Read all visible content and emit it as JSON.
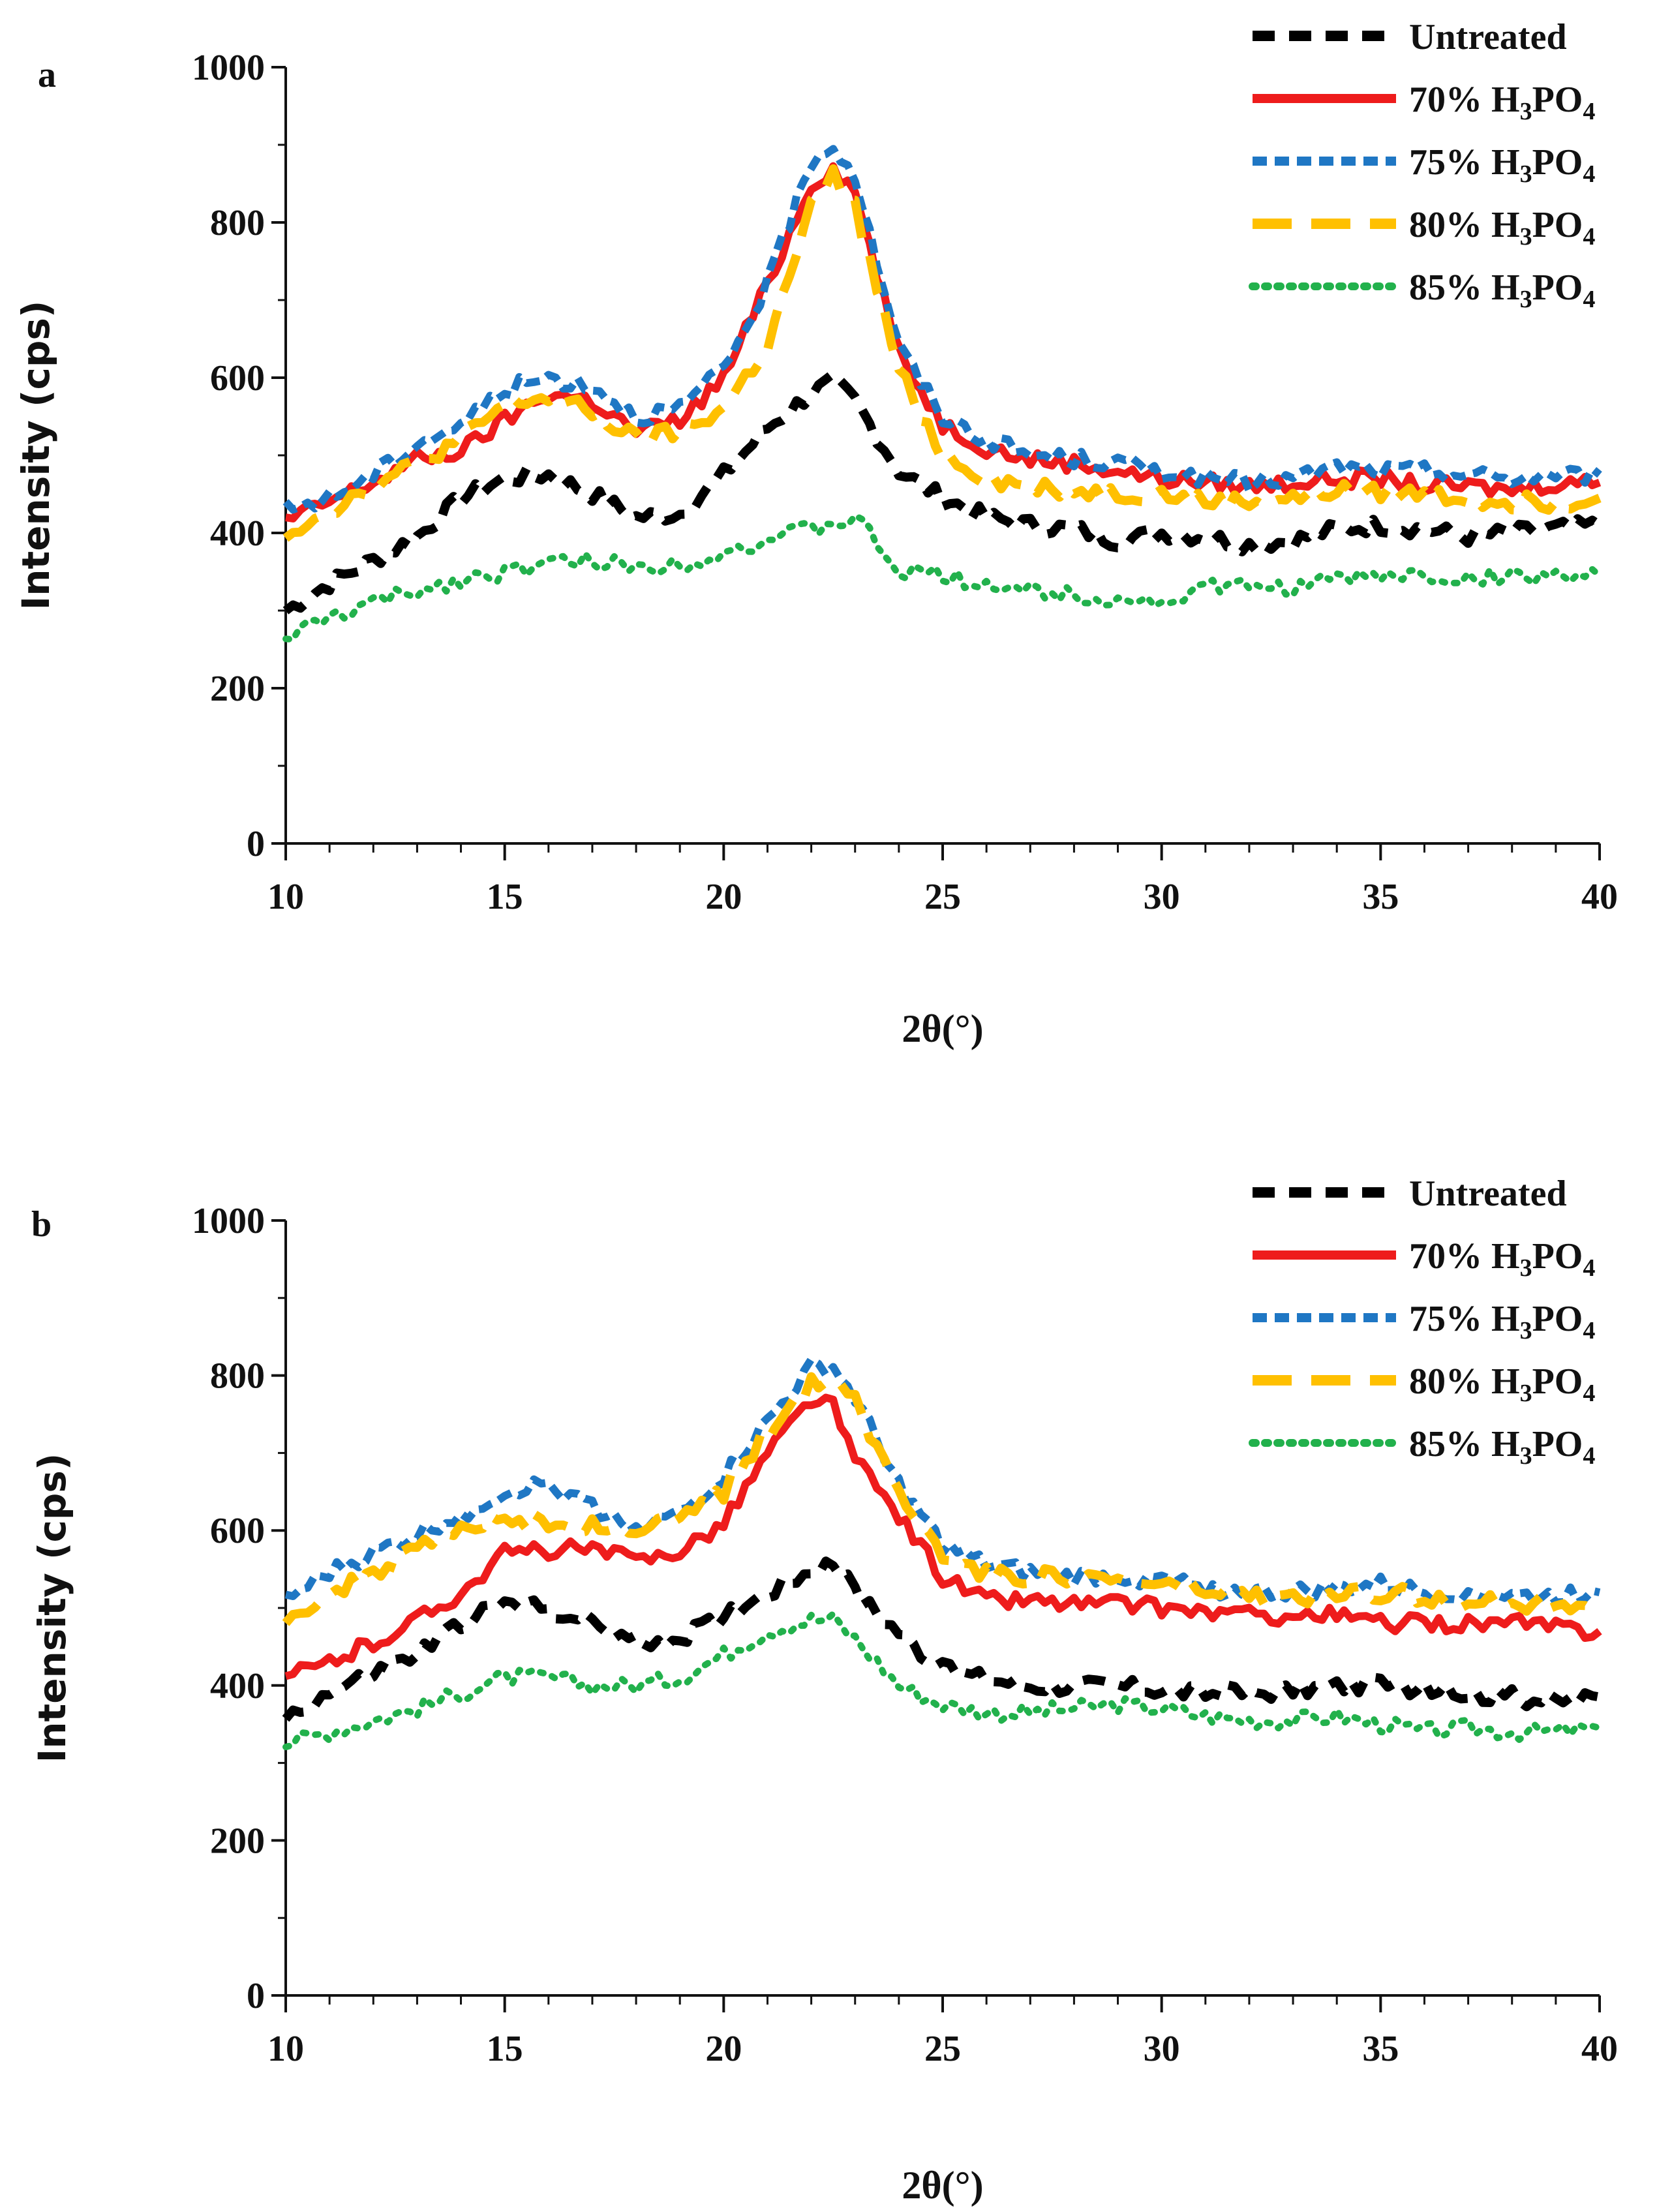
{
  "chart_data": [
    {
      "panel": "a",
      "type": "line",
      "xlabel": "2θ(°)",
      "ylabel": "Intensity (cps)",
      "xlim": [
        10,
        40
      ],
      "ylim": [
        0,
        1000
      ],
      "xticks": [
        "10",
        "15",
        "20",
        "25",
        "30",
        "35",
        "40"
      ],
      "yticks": [
        "0",
        "200",
        "400",
        "600",
        "800",
        "1000"
      ],
      "legend_position": "top-right",
      "x": [
        10,
        11,
        12,
        13,
        14,
        15,
        16,
        17,
        18,
        19,
        20,
        21,
        22,
        22.5,
        23,
        24,
        25,
        26,
        27,
        28,
        29,
        30,
        31,
        32,
        33,
        34,
        35,
        36,
        37,
        38,
        39,
        40
      ],
      "series": [
        {
          "name": "Untreated",
          "color": "#000000",
          "style": "dash",
          "values": [
            300,
            335,
            365,
            395,
            445,
            470,
            475,
            450,
            420,
            425,
            475,
            535,
            580,
            595,
            570,
            480,
            445,
            420,
            410,
            405,
            390,
            400,
            395,
            385,
            390,
            405,
            410,
            405,
            395,
            400,
            405,
            410
          ]
        },
        {
          "name": "70% H3PO4",
          "color": "#ee1c1c",
          "style": "solid",
          "values": [
            415,
            440,
            465,
            495,
            505,
            545,
            580,
            570,
            530,
            545,
            600,
            720,
            850,
            870,
            840,
            630,
            540,
            510,
            495,
            490,
            480,
            470,
            465,
            460,
            465,
            470,
            470,
            460,
            460,
            455,
            465,
            465
          ]
        },
        {
          "name": "75% H3PO4",
          "color": "#1f77c4",
          "style": "dash-short",
          "values": [
            430,
            445,
            475,
            515,
            540,
            585,
            600,
            590,
            550,
            560,
            610,
            720,
            880,
            900,
            860,
            640,
            550,
            520,
            500,
            495,
            490,
            480,
            470,
            465,
            470,
            485,
            480,
            480,
            475,
            470,
            475,
            475
          ]
        },
        {
          "name": "80% H3PO4",
          "color": "#ffc000",
          "style": "dash-long",
          "values": [
            400,
            430,
            460,
            490,
            520,
            565,
            575,
            555,
            520,
            530,
            560,
            640,
            820,
            860,
            820,
            610,
            500,
            470,
            460,
            455,
            450,
            450,
            440,
            440,
            445,
            455,
            450,
            450,
            445,
            440,
            440,
            445
          ]
        },
        {
          "name": "85% H3PO4",
          "color": "#22b14c",
          "style": "dot",
          "values": [
            265,
            290,
            310,
            325,
            340,
            350,
            360,
            365,
            355,
            360,
            375,
            390,
            405,
            410,
            420,
            350,
            345,
            335,
            325,
            320,
            315,
            310,
            330,
            330,
            330,
            340,
            345,
            345,
            340,
            345,
            345,
            345
          ]
        }
      ]
    },
    {
      "panel": "b",
      "type": "line",
      "xlabel": "2θ(°)",
      "ylabel": "Intensity (cps)",
      "xlim": [
        10,
        40
      ],
      "ylim": [
        0,
        1000
      ],
      "xticks": [
        "10",
        "15",
        "20",
        "25",
        "30",
        "35",
        "40"
      ],
      "yticks": [
        "0",
        "200",
        "400",
        "600",
        "800",
        "1000"
      ],
      "legend_position": "top-right",
      "x": [
        10,
        11,
        12,
        13,
        14,
        15,
        16,
        17,
        18,
        19,
        20,
        21,
        22,
        22.5,
        23,
        24,
        25,
        26,
        27,
        28,
        29,
        30,
        31,
        32,
        33,
        34,
        35,
        36,
        37,
        38,
        39,
        40
      ],
      "series": [
        {
          "name": "Untreated",
          "color": "#000000",
          "style": "dash",
          "values": [
            360,
            390,
            415,
            440,
            480,
            505,
            500,
            480,
            455,
            460,
            490,
            520,
            550,
            560,
            520,
            470,
            420,
            410,
            400,
            400,
            400,
            395,
            390,
            390,
            395,
            400,
            400,
            395,
            390,
            385,
            380,
            385
          ]
        },
        {
          "name": "70% H3PO4",
          "color": "#ee1c1c",
          "style": "solid",
          "values": [
            410,
            430,
            455,
            485,
            520,
            570,
            575,
            575,
            560,
            575,
            610,
            700,
            770,
            760,
            690,
            620,
            540,
            510,
            510,
            505,
            505,
            500,
            495,
            490,
            490,
            490,
            480,
            480,
            480,
            480,
            475,
            470
          ]
        },
        {
          "name": "75% H3PO4",
          "color": "#1f77c4",
          "style": "dash-short",
          "values": [
            510,
            545,
            570,
            595,
            620,
            650,
            660,
            630,
            605,
            620,
            670,
            740,
            810,
            810,
            770,
            660,
            580,
            555,
            545,
            540,
            540,
            535,
            525,
            520,
            520,
            525,
            530,
            520,
            520,
            515,
            515,
            520
          ]
        },
        {
          "name": "80% H3PO4",
          "color": "#ffc000",
          "style": "dash-long",
          "values": [
            490,
            515,
            545,
            575,
            600,
            615,
            610,
            605,
            600,
            615,
            650,
            725,
            790,
            800,
            765,
            650,
            570,
            545,
            540,
            540,
            535,
            530,
            520,
            515,
            510,
            515,
            520,
            515,
            510,
            505,
            505,
            505
          ]
        },
        {
          "name": "85% H3PO4",
          "color": "#22b14c",
          "style": "dot",
          "values": [
            325,
            340,
            355,
            370,
            390,
            410,
            410,
            400,
            400,
            410,
            440,
            470,
            485,
            485,
            460,
            400,
            375,
            365,
            365,
            370,
            375,
            370,
            360,
            355,
            355,
            360,
            350,
            340,
            345,
            340,
            340,
            345
          ]
        }
      ]
    }
  ]
}
